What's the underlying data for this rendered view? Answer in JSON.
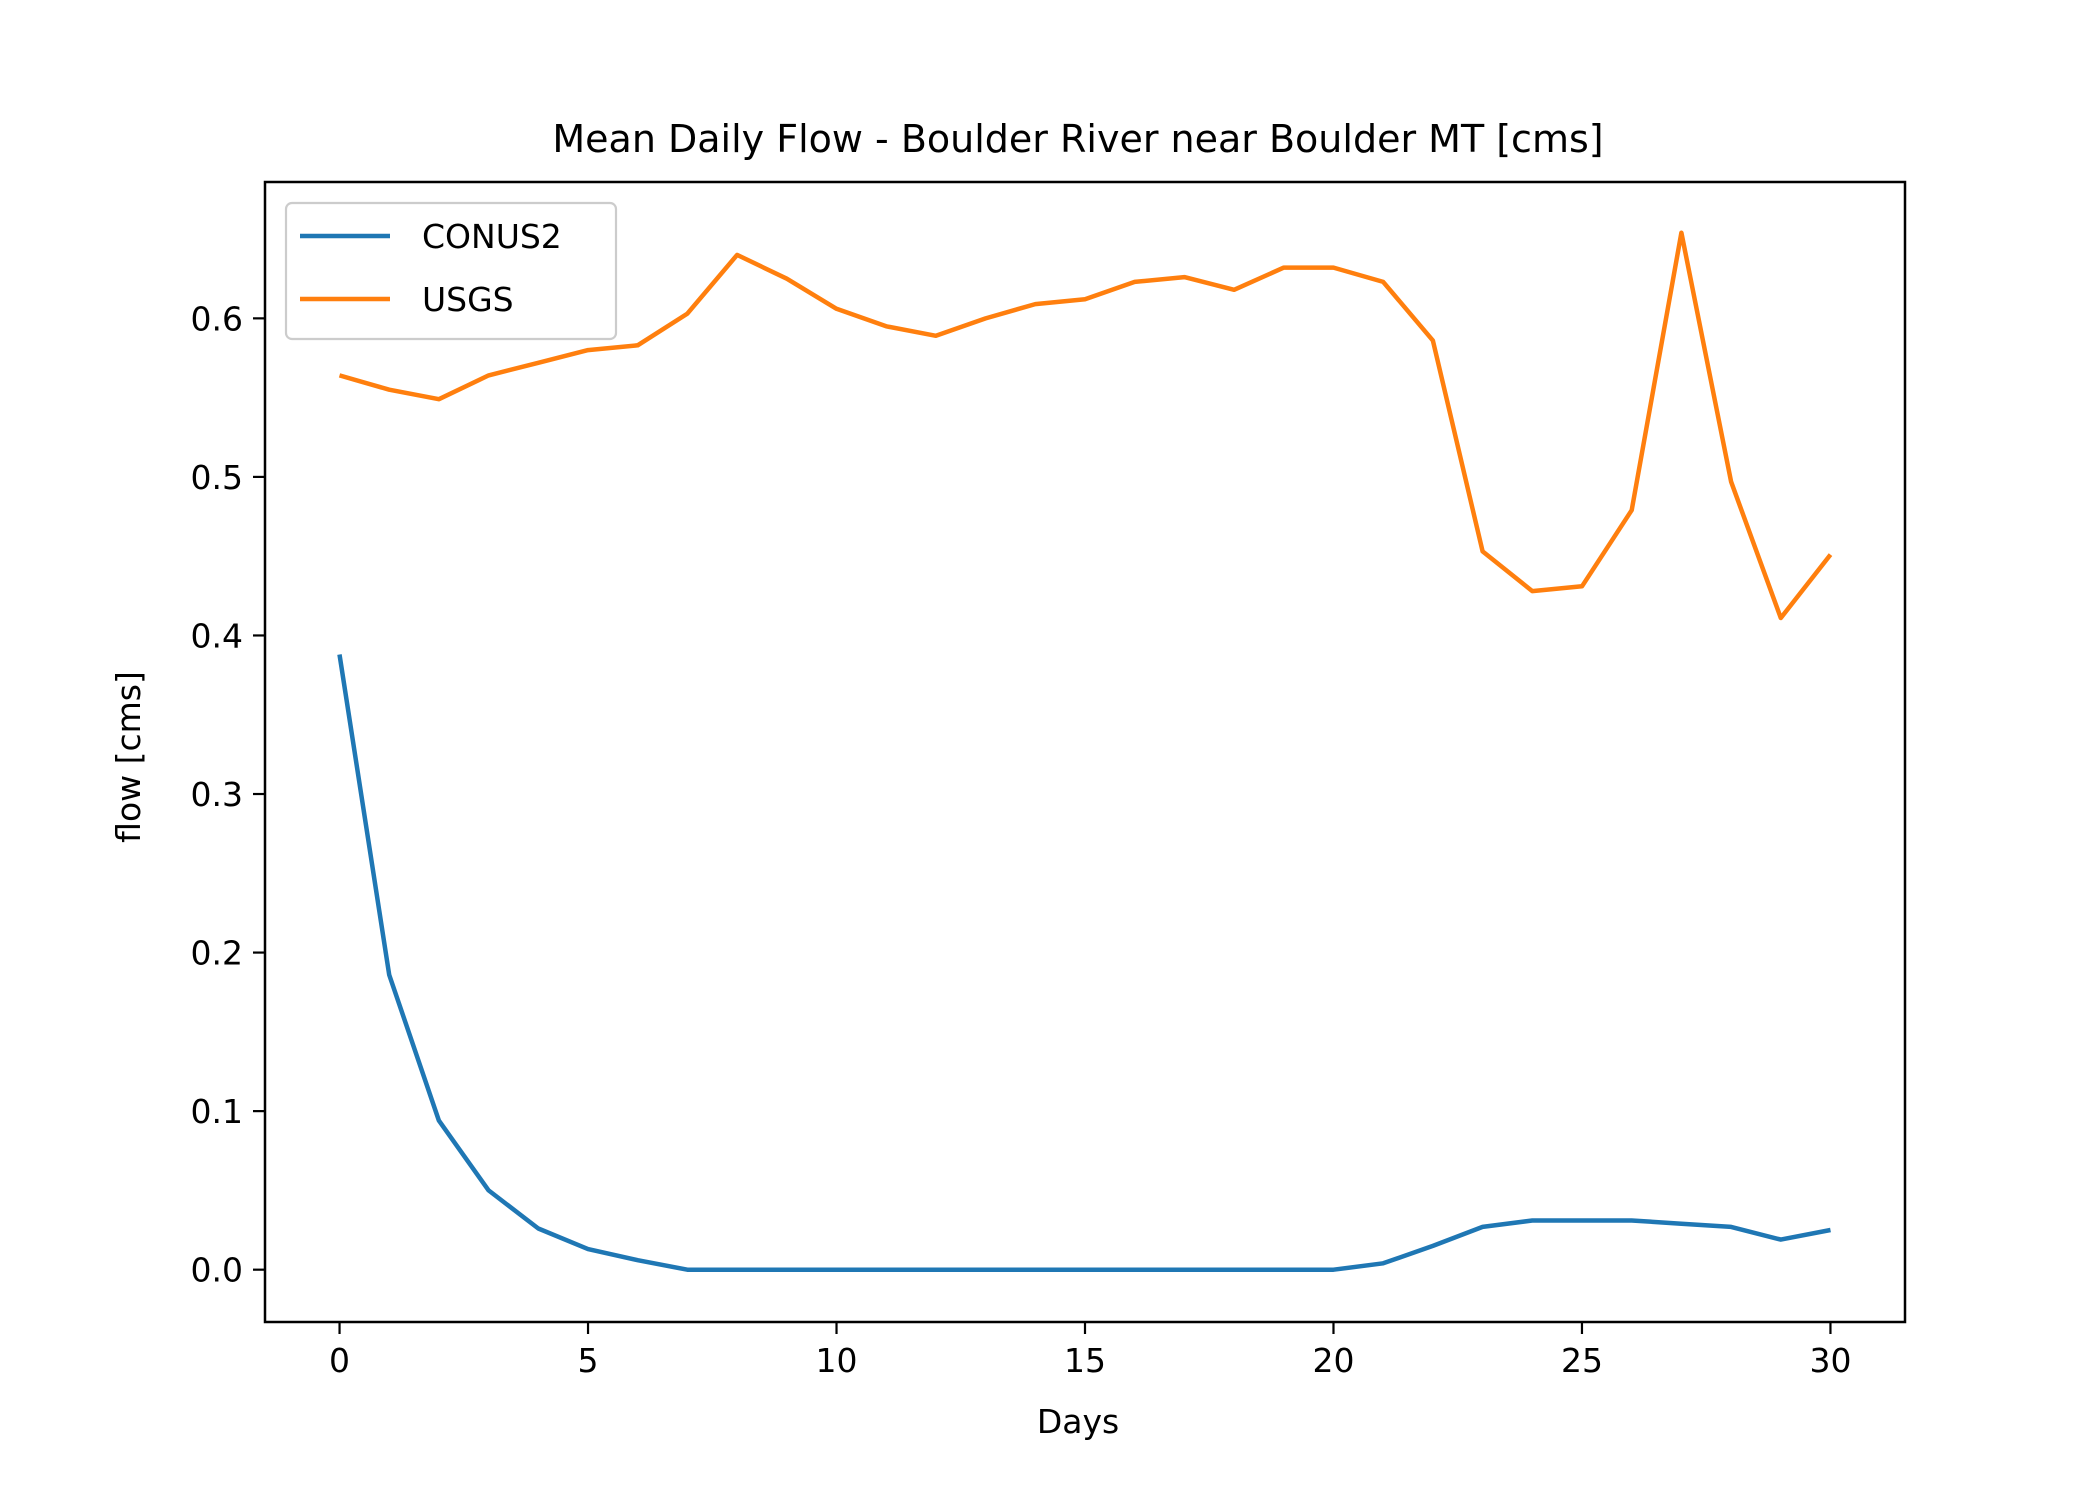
{
  "chart_data": {
    "type": "line",
    "title": "Mean Daily Flow - Boulder River near Boulder MT [cms]",
    "xlabel": "Days",
    "ylabel": "flow [cms]",
    "xlim": [
      -1.5,
      31.5
    ],
    "ylim": [
      -0.033,
      0.686
    ],
    "xticks": [
      0,
      5,
      10,
      15,
      20,
      25,
      30
    ],
    "yticks": [
      0.0,
      0.1,
      0.2,
      0.3,
      0.4,
      0.5,
      0.6
    ],
    "ytick_labels": [
      "0.0",
      "0.1",
      "0.2",
      "0.3",
      "0.4",
      "0.5",
      "0.6"
    ],
    "grid": false,
    "legend": "upper left",
    "x": [
      0,
      1,
      2,
      3,
      4,
      5,
      6,
      7,
      8,
      9,
      10,
      11,
      12,
      13,
      14,
      15,
      16,
      17,
      18,
      19,
      20,
      21,
      22,
      23,
      24,
      25,
      26,
      27,
      28,
      29,
      30
    ],
    "series": [
      {
        "name": "CONUS2",
        "color": "#1f77b4",
        "values": [
          0.388,
          0.186,
          0.094,
          0.05,
          0.026,
          0.013,
          0.006,
          0.0,
          0.0,
          0.0,
          0.0,
          0.0,
          0.0,
          0.0,
          0.0,
          0.0,
          0.0,
          0.0,
          0.0,
          0.0,
          0.0,
          0.004,
          0.015,
          0.027,
          0.031,
          0.031,
          0.031,
          0.029,
          0.027,
          0.019,
          0.025
        ]
      },
      {
        "name": "USGS",
        "color": "#ff7f0e",
        "values": [
          0.564,
          0.555,
          0.549,
          0.564,
          0.572,
          0.58,
          0.583,
          0.603,
          0.64,
          0.625,
          0.606,
          0.595,
          0.589,
          0.6,
          0.609,
          0.612,
          0.623,
          0.626,
          0.618,
          0.632,
          0.632,
          0.623,
          0.586,
          0.453,
          0.428,
          0.431,
          0.479,
          0.654,
          0.497,
          0.411,
          0.451
        ]
      }
    ]
  }
}
